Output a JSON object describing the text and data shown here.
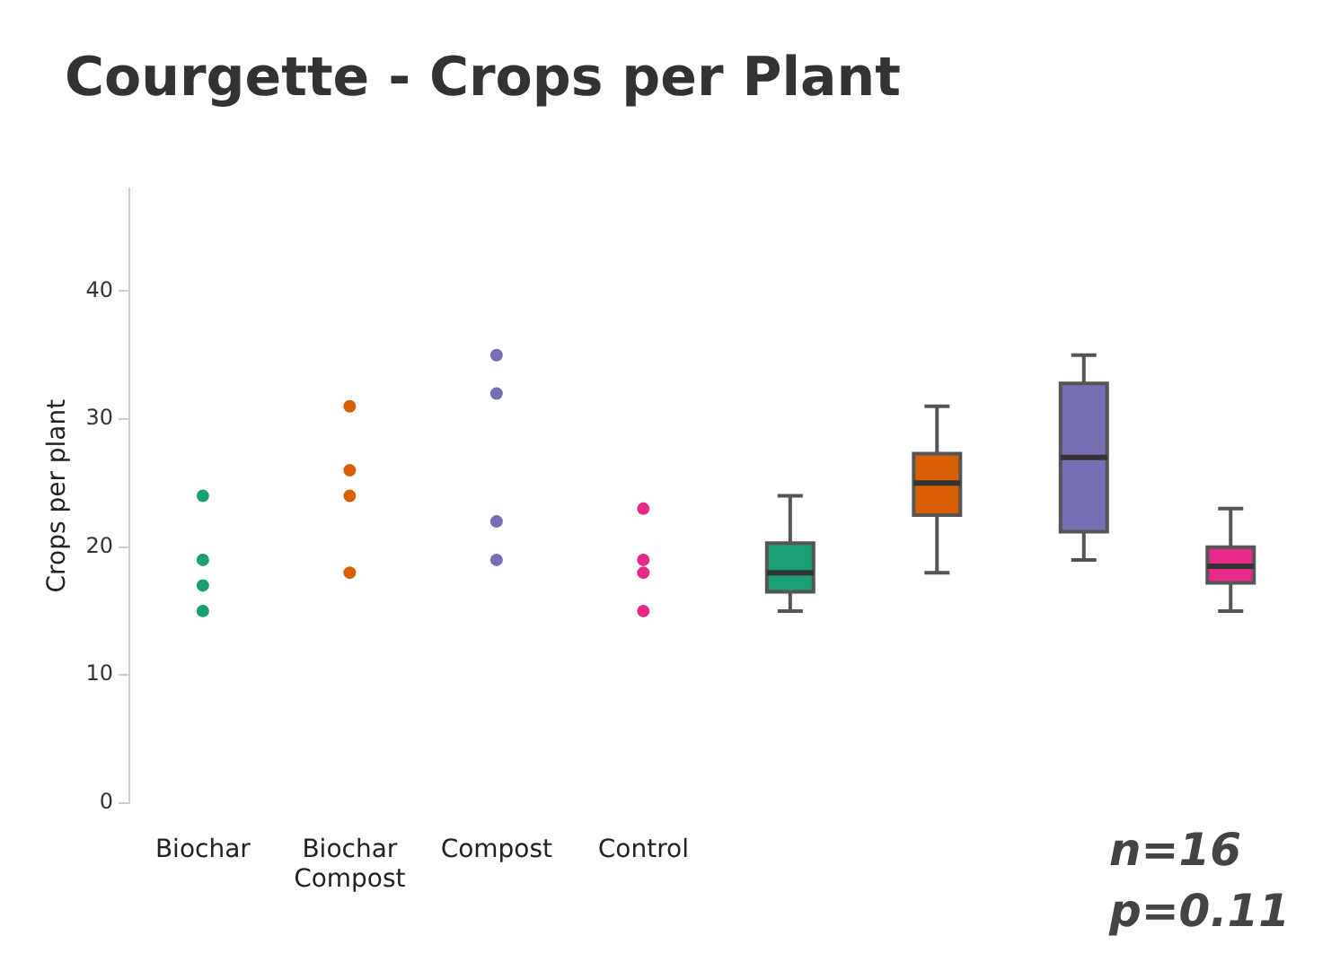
{
  "chart_data": {
    "type": "box",
    "title": "Courgette - Crops per Plant",
    "ylabel": "Crops per plant",
    "categories": [
      "Biochar",
      "Biochar Compost",
      "Compost",
      "Control",
      null,
      null,
      null,
      null
    ],
    "ylim": [
      0,
      48
    ],
    "yticks": [
      0,
      10,
      20,
      30,
      40
    ],
    "grid": false,
    "legend": false,
    "marker": "circle",
    "series": [
      {
        "type": "scatter",
        "x": [
          "Biochar",
          "Biochar",
          "Biochar",
          "Biochar",
          "Biochar Compost",
          "Biochar Compost",
          "Biochar Compost",
          "Biochar Compost",
          "Compost",
          "Compost",
          "Compost",
          "Compost",
          "Control",
          "Control",
          "Control",
          "Control"
        ],
        "values": [
          17,
          19,
          15,
          24,
          31,
          24,
          26,
          18,
          35,
          32,
          22,
          19,
          23,
          19,
          18,
          15
        ],
        "colors": [
          "#1b9e77",
          "#1b9e77",
          "#1b9e77",
          "#1b9e77",
          "#d95f02",
          "#d95f02",
          "#d95f02",
          "#d95f02",
          "#7570b3",
          "#7570b3",
          "#7570b3",
          "#7570b3",
          "#e7298a",
          "#e7298a",
          "#e7298a",
          "#e7298a"
        ]
      },
      {
        "type": "box",
        "colors": [
          null,
          null,
          null,
          null,
          "#1b9e77",
          "#d95f02",
          "#7570b3",
          "#e7298a"
        ],
        "boxes": [
          null,
          null,
          null,
          null,
          {
            "low": 15,
            "q1": 16.5,
            "median": 18,
            "q3": 20.3,
            "high": 24
          },
          {
            "low": 18,
            "q1": 22.5,
            "median": 25,
            "q3": 27.3,
            "high": 31
          },
          {
            "low": 19,
            "q1": 21.2,
            "median": 27,
            "q3": 32.8,
            "high": 35
          },
          {
            "low": 15,
            "q1": 17.2,
            "median": 18.5,
            "q3": 20,
            "high": 23
          }
        ]
      }
    ],
    "annotations": [
      "n=16",
      "p=0.11"
    ]
  }
}
